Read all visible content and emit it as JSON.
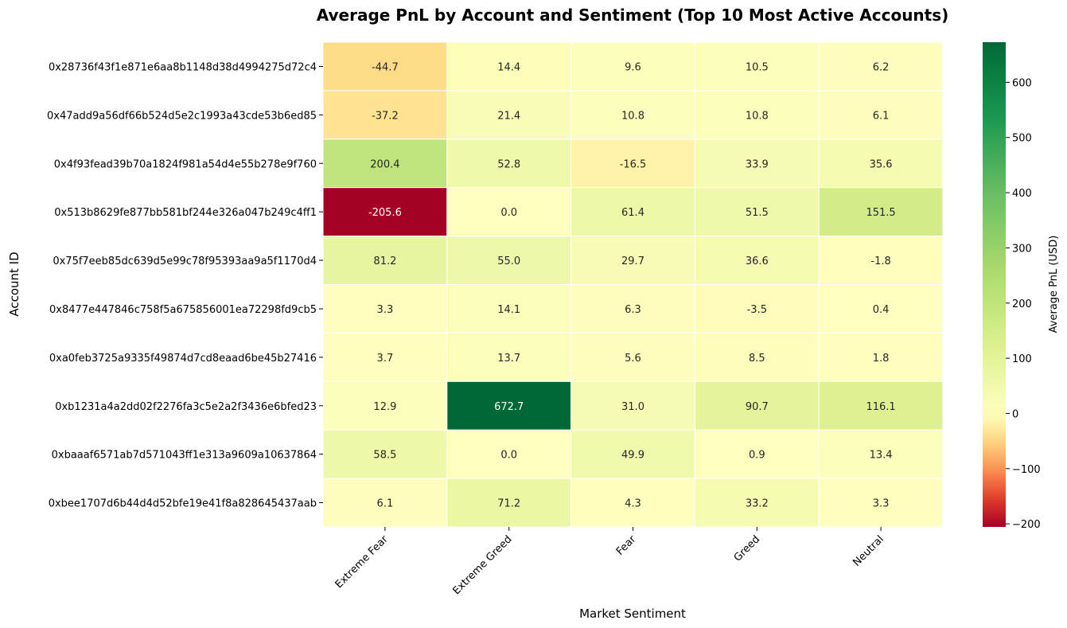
{
  "chart_data": {
    "type": "heatmap",
    "title": "Average PnL by Account and Sentiment (Top 10 Most Active Accounts)",
    "xlabel": "Market Sentiment",
    "ylabel": "Account ID",
    "colorbar_label": "Average PnL (USD)",
    "colormap": "RdYlGn",
    "color_range": [
      -205.6,
      672.7
    ],
    "colorbar_ticks": [
      -200,
      -100,
      0,
      100,
      200,
      300,
      400,
      500,
      600
    ],
    "colorbar_tick_labels": [
      "−200",
      "−100",
      "0",
      "100",
      "200",
      "300",
      "400",
      "500",
      "600"
    ],
    "x_categories": [
      "Extreme Fear",
      "Extreme Greed",
      "Fear",
      "Greed",
      "Neutral"
    ],
    "y_categories": [
      "0x28736f43f1e871e6aa8b1148d38d4994275d72c4",
      "0x47add9a56df66b524d5e2c1993a43cde53b6ed85",
      "0x4f93fead39b70a1824f981a54d4e55b278e9f760",
      "0x513b8629fe877bb581bf244e326a047b249c4ff1",
      "0x75f7eeb85dc639d5e99c78f95393aa9a5f1170d4",
      "0x8477e447846c758f5a675856001ea72298fd9cb5",
      "0xa0feb3725a9335f49874d7cd8eaad6be45b27416",
      "0xb1231a4a2dd02f2276fa3c5e2a2f3436e6bfed23",
      "0xbaaaf6571ab7d571043ff1e313a9609a10637864",
      "0xbee1707d6b44d4d52bfe19e41f8a828645437aab"
    ],
    "values": [
      [
        -44.7,
        14.4,
        9.6,
        10.5,
        6.2
      ],
      [
        -37.2,
        21.4,
        10.8,
        10.8,
        6.1
      ],
      [
        200.4,
        52.8,
        -16.5,
        33.9,
        35.6
      ],
      [
        -205.6,
        0.0,
        61.4,
        51.5,
        151.5
      ],
      [
        81.2,
        55.0,
        29.7,
        36.6,
        -1.8
      ],
      [
        3.3,
        14.1,
        6.3,
        -3.5,
        0.4
      ],
      [
        3.7,
        13.7,
        5.6,
        8.5,
        1.8
      ],
      [
        12.9,
        672.7,
        31.0,
        90.7,
        116.1
      ],
      [
        58.5,
        0.0,
        49.9,
        0.9,
        13.4
      ],
      [
        6.1,
        71.2,
        4.3,
        33.2,
        3.3
      ]
    ],
    "value_labels": [
      [
        "-44.7",
        "14.4",
        "9.6",
        "10.5",
        "6.2"
      ],
      [
        "-37.2",
        "21.4",
        "10.8",
        "10.8",
        "6.1"
      ],
      [
        "200.4",
        "52.8",
        "-16.5",
        "33.9",
        "35.6"
      ],
      [
        "-205.6",
        "0.0",
        "61.4",
        "51.5",
        "151.5"
      ],
      [
        "81.2",
        "55.0",
        "29.7",
        "36.6",
        "-1.8"
      ],
      [
        "3.3",
        "14.1",
        "6.3",
        "-3.5",
        "0.4"
      ],
      [
        "3.7",
        "13.7",
        "5.6",
        "8.5",
        "1.8"
      ],
      [
        "12.9",
        "672.7",
        "31.0",
        "90.7",
        "116.1"
      ],
      [
        "58.5",
        "0.0",
        "49.9",
        "0.9",
        "13.4"
      ],
      [
        "6.1",
        "71.2",
        "4.3",
        "33.2",
        "3.3"
      ]
    ],
    "cell_border_color": "#ffffff",
    "legend": "colorbar-right",
    "grid": false
  }
}
